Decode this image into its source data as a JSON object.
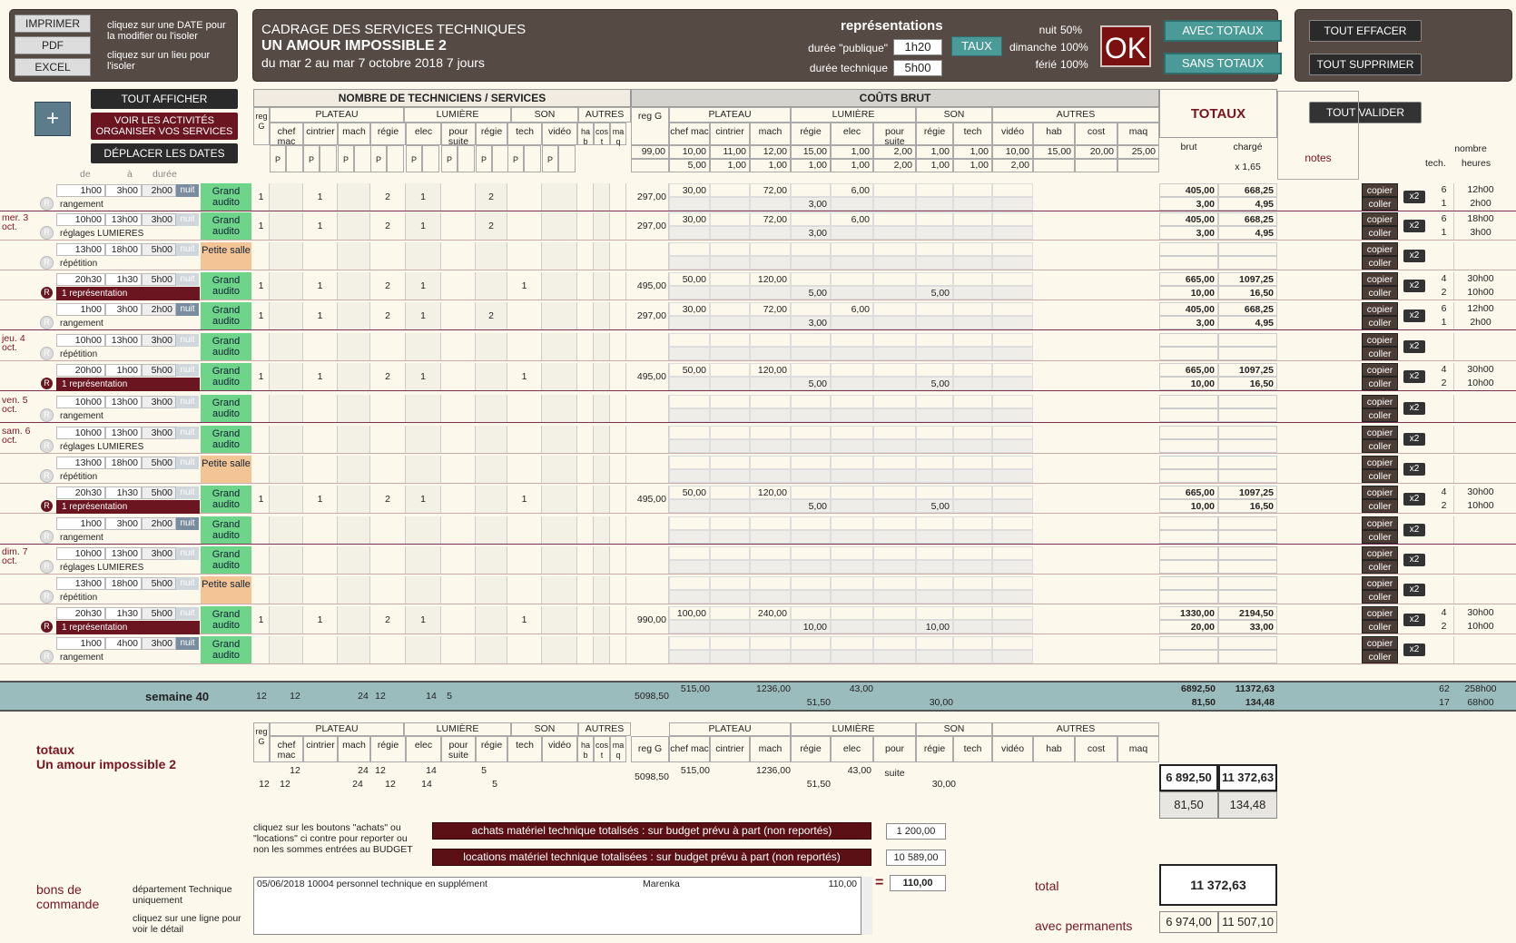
{
  "topleft": {
    "print": "IMPRIMER",
    "pdf": "PDF",
    "excel": "EXCEL",
    "hint1": "cliquez sur une DATE pour la modifier ou l'isoler",
    "hint2": "cliquez sur un lieu pour l'isoler"
  },
  "title": {
    "line1": "CADRAGE DES SERVICES TECHNIQUES",
    "line2": "UN AMOUR IMPOSSIBLE 2",
    "line3": "du mar 2 au mar 7 octobre 2018 7 jours"
  },
  "repr": {
    "title": "représentations",
    "duree_pub_label": "durée \"publique\"",
    "duree_pub": "1h20",
    "duree_tech_label": "durée technique",
    "duree_tech": "5h00",
    "taux": "TAUX",
    "nuit_label": "nuit",
    "nuit": "50%",
    "dim_label": "dimanche",
    "dim": "100%",
    "ferie_label": "férié",
    "ferie": "100%",
    "ok": "OK",
    "avec": "AVEC TOTAUX",
    "sans": "SANS TOTAUX"
  },
  "right": {
    "effacer": "TOUT EFFACER",
    "supprimer": "TOUT SUPPRIMER",
    "valider": "TOUT VALIDER"
  },
  "left2": {
    "plus": "+",
    "afficher": "TOUT AFFICHER",
    "voir": "VOIR LES ACTIVITÉS ORGANISER VOS SERVICES",
    "deplacer": "DÉPLACER LES DATES",
    "de": "de",
    "a": "à",
    "duree": "durée"
  },
  "head": {
    "nb": "NOMBRE DE TECHNICIENS / SERVICES",
    "couts": "COÛTS BRUT",
    "totaux": "TOTAUX",
    "brut": "brut",
    "charge": "chargé",
    "coef": "x 1,65",
    "notes": "notes",
    "nombre": "nombre",
    "tech": "tech.",
    "heures": "heures",
    "groups": [
      "PLATEAU",
      "LUMIÈRE",
      "SON",
      "AUTRES"
    ],
    "cols": [
      "reg G",
      "chef mac",
      "cintrier",
      "mach",
      "régie",
      "elec",
      "pour suite",
      "régie",
      "tech",
      "vidéo",
      "ha b",
      "cos t",
      "ma q"
    ],
    "ccols": [
      "reg G",
      "chef mac",
      "cintrier",
      "mach",
      "régie",
      "elec",
      "pour suite",
      "régie",
      "tech",
      "vidéo",
      "hab",
      "cost",
      "maq"
    ],
    "rates1": [
      "99,00",
      "10,00",
      "11,00",
      "12,00",
      "15,00",
      "1,00",
      "2,00",
      "1,00",
      "1,00",
      "10,00",
      "15,00",
      "20,00",
      "25,00"
    ],
    "rates2": [
      "",
      "5,00",
      "1,00",
      "1,00",
      "1,00",
      "1,00",
      "2,00",
      "1,00",
      "1,00",
      "2,00",
      "",
      "",
      ""
    ],
    "p": "P"
  },
  "rows": [
    {
      "day": "",
      "time1": "1h00",
      "time2": "3h00",
      "dur": "2h00",
      "nuit": "nuit",
      "nuitOn": true,
      "label": "rangement",
      "rep": false,
      "lieu": "Grand audito",
      "lieuType": "g",
      "n": [
        "1",
        "",
        "1",
        "",
        "2",
        "1",
        "",
        "2",
        "",
        "",
        "",
        "",
        ""
      ],
      "regg": "297,00",
      "c1": [
        "30,00",
        "",
        "72,00",
        "",
        "6,00",
        "",
        "",
        "",
        ""
      ],
      "c2": [
        "",
        "",
        "",
        "3,00",
        "",
        "",
        "",
        "",
        ""
      ],
      "brut": [
        "405,00",
        "3,00"
      ],
      "charge": [
        "668,25",
        "4,95"
      ],
      "nb": [
        "6",
        "1"
      ],
      "h": [
        "12h00",
        "2h00"
      ]
    },
    {
      "day": "mer. 3 oct.",
      "time1": "10h00",
      "time2": "13h00",
      "dur": "3h00",
      "nuit": "nuit",
      "nuitOn": false,
      "label": "réglages LUMIERES",
      "rep": false,
      "lieu": "Grand audito",
      "lieuType": "g",
      "n": [
        "1",
        "",
        "1",
        "",
        "2",
        "1",
        "",
        "2",
        "",
        "",
        "",
        "",
        ""
      ],
      "regg": "297,00",
      "c1": [
        "30,00",
        "",
        "72,00",
        "",
        "6,00",
        "",
        "",
        "",
        ""
      ],
      "c2": [
        "",
        "",
        "",
        "3,00",
        "",
        "",
        "",
        "",
        ""
      ],
      "brut": [
        "405,00",
        "3,00"
      ],
      "charge": [
        "668,25",
        "4,95"
      ],
      "nb": [
        "6",
        "1"
      ],
      "h": [
        "18h00",
        "3h00"
      ]
    },
    {
      "day": "",
      "time1": "13h00",
      "time2": "18h00",
      "dur": "5h00",
      "nuit": "nuit",
      "nuitOn": false,
      "label": "répétition",
      "rep": false,
      "lieu": "Petite salle",
      "lieuType": "p",
      "n": [
        "",
        "",
        "",
        "",
        "",
        "",
        "",
        "",
        "",
        "",
        "",
        "",
        ""
      ],
      "regg": "",
      "c1": [
        "",
        "",
        "",
        "",
        "",
        "",
        "",
        "",
        ""
      ],
      "c2": [
        "",
        "",
        "",
        "",
        "",
        "",
        "",
        "",
        ""
      ],
      "brut": [
        "",
        ""
      ],
      "charge": [
        "",
        ""
      ],
      "nb": [
        "",
        ""
      ],
      "h": [
        "",
        ""
      ]
    },
    {
      "day": "",
      "time1": "20h30",
      "time2": "1h30",
      "dur": "5h00",
      "nuit": "nuit",
      "nuitOn": false,
      "label": "1 représentation",
      "rep": true,
      "lieu": "Grand audito",
      "lieuType": "g",
      "n": [
        "1",
        "",
        "1",
        "",
        "2",
        "1",
        "",
        "",
        "1",
        "",
        "",
        "",
        ""
      ],
      "regg": "495,00",
      "c1": [
        "50,00",
        "",
        "120,00",
        "",
        "",
        "",
        "",
        "",
        ""
      ],
      "c2": [
        "",
        "",
        "",
        "5,00",
        "",
        "",
        "5,00",
        "",
        ""
      ],
      "brut": [
        "665,00",
        "10,00"
      ],
      "charge": [
        "1097,25",
        "16,50"
      ],
      "nb": [
        "4",
        "2"
      ],
      "h": [
        "30h00",
        "10h00"
      ]
    },
    {
      "day": "",
      "time1": "1h00",
      "time2": "3h00",
      "dur": "2h00",
      "nuit": "nuit",
      "nuitOn": true,
      "label": "rangement",
      "rep": false,
      "lieu": "Grand audito",
      "lieuType": "g",
      "n": [
        "1",
        "",
        "1",
        "",
        "2",
        "1",
        "",
        "2",
        "",
        "",
        "",
        "",
        ""
      ],
      "regg": "297,00",
      "c1": [
        "30,00",
        "",
        "72,00",
        "",
        "6,00",
        "",
        "",
        "",
        ""
      ],
      "c2": [
        "",
        "",
        "",
        "3,00",
        "",
        "",
        "",
        "",
        ""
      ],
      "brut": [
        "405,00",
        "3,00"
      ],
      "charge": [
        "668,25",
        "4,95"
      ],
      "nb": [
        "6",
        "1"
      ],
      "h": [
        "12h00",
        "2h00"
      ]
    },
    {
      "day": "jeu. 4 oct.",
      "time1": "10h00",
      "time2": "13h00",
      "dur": "3h00",
      "nuit": "nuit",
      "nuitOn": false,
      "label": "répétition",
      "rep": false,
      "lieu": "Grand audito",
      "lieuType": "g",
      "n": [
        "",
        "",
        "",
        "",
        "",
        "",
        "",
        "",
        "",
        "",
        "",
        "",
        ""
      ],
      "regg": "",
      "c1": [
        "",
        "",
        "",
        "",
        "",
        "",
        "",
        "",
        ""
      ],
      "c2": [
        "",
        "",
        "",
        "",
        "",
        "",
        "",
        "",
        ""
      ],
      "brut": [
        "",
        ""
      ],
      "charge": [
        "",
        ""
      ],
      "nb": [
        "",
        ""
      ],
      "h": [
        "",
        ""
      ]
    },
    {
      "day": "",
      "time1": "20h00",
      "time2": "1h00",
      "dur": "5h00",
      "nuit": "nuit",
      "nuitOn": false,
      "label": "1 représentation",
      "rep": true,
      "lieu": "Grand audito",
      "lieuType": "g",
      "n": [
        "1",
        "",
        "1",
        "",
        "2",
        "1",
        "",
        "",
        "1",
        "",
        "",
        "",
        ""
      ],
      "regg": "495,00",
      "c1": [
        "50,00",
        "",
        "120,00",
        "",
        "",
        "",
        "",
        "",
        ""
      ],
      "c2": [
        "",
        "",
        "",
        "5,00",
        "",
        "",
        "5,00",
        "",
        ""
      ],
      "brut": [
        "665,00",
        "10,00"
      ],
      "charge": [
        "1097,25",
        "16,50"
      ],
      "nb": [
        "4",
        "2"
      ],
      "h": [
        "30h00",
        "10h00"
      ]
    },
    {
      "day": "ven. 5 oct.",
      "time1": "10h00",
      "time2": "13h00",
      "dur": "3h00",
      "nuit": "nuit",
      "nuitOn": false,
      "label": "rangement",
      "rep": false,
      "lieu": "Grand audito",
      "lieuType": "g",
      "n": [
        "",
        "",
        "",
        "",
        "",
        "",
        "",
        "",
        "",
        "",
        "",
        "",
        ""
      ],
      "regg": "",
      "c1": [
        "",
        "",
        "",
        "",
        "",
        "",
        "",
        "",
        ""
      ],
      "c2": [
        "",
        "",
        "",
        "",
        "",
        "",
        "",
        "",
        ""
      ],
      "brut": [
        "",
        ""
      ],
      "charge": [
        "",
        ""
      ],
      "nb": [
        "",
        ""
      ],
      "h": [
        "",
        ""
      ]
    },
    {
      "day": "sam. 6 oct.",
      "time1": "10h00",
      "time2": "13h00",
      "dur": "3h00",
      "nuit": "nuit",
      "nuitOn": false,
      "label": "réglages LUMIERES",
      "rep": false,
      "lieu": "Grand audito",
      "lieuType": "g",
      "n": [
        "",
        "",
        "",
        "",
        "",
        "",
        "",
        "",
        "",
        "",
        "",
        "",
        ""
      ],
      "regg": "",
      "c1": [
        "",
        "",
        "",
        "",
        "",
        "",
        "",
        "",
        ""
      ],
      "c2": [
        "",
        "",
        "",
        "",
        "",
        "",
        "",
        "",
        ""
      ],
      "brut": [
        "",
        ""
      ],
      "charge": [
        "",
        ""
      ],
      "nb": [
        "",
        ""
      ],
      "h": [
        "",
        ""
      ]
    },
    {
      "day": "",
      "time1": "13h00",
      "time2": "18h00",
      "dur": "5h00",
      "nuit": "nuit",
      "nuitOn": false,
      "label": "répétition",
      "rep": false,
      "lieu": "Petite salle",
      "lieuType": "p",
      "n": [
        "",
        "",
        "",
        "",
        "",
        "",
        "",
        "",
        "",
        "",
        "",
        "",
        ""
      ],
      "regg": "",
      "c1": [
        "",
        "",
        "",
        "",
        "",
        "",
        "",
        "",
        ""
      ],
      "c2": [
        "",
        "",
        "",
        "",
        "",
        "",
        "",
        "",
        ""
      ],
      "brut": [
        "",
        ""
      ],
      "charge": [
        "",
        ""
      ],
      "nb": [
        "",
        ""
      ],
      "h": [
        "",
        ""
      ]
    },
    {
      "day": "",
      "time1": "20h30",
      "time2": "1h30",
      "dur": "5h00",
      "nuit": "nuit",
      "nuitOn": false,
      "label": "1 représentation",
      "rep": true,
      "lieu": "Grand audito",
      "lieuType": "g",
      "n": [
        "1",
        "",
        "1",
        "",
        "2",
        "1",
        "",
        "",
        "1",
        "",
        "",
        "",
        ""
      ],
      "regg": "495,00",
      "c1": [
        "50,00",
        "",
        "120,00",
        "",
        "",
        "",
        "",
        "",
        ""
      ],
      "c2": [
        "",
        "",
        "",
        "5,00",
        "",
        "",
        "5,00",
        "",
        ""
      ],
      "brut": [
        "665,00",
        "10,00"
      ],
      "charge": [
        "1097,25",
        "16,50"
      ],
      "nb": [
        "4",
        "2"
      ],
      "h": [
        "30h00",
        "10h00"
      ]
    },
    {
      "day": "",
      "time1": "1h00",
      "time2": "3h00",
      "dur": "2h00",
      "nuit": "nuit",
      "nuitOn": true,
      "label": "rangement",
      "rep": false,
      "lieu": "Grand audito",
      "lieuType": "g",
      "n": [
        "",
        "",
        "",
        "",
        "",
        "",
        "",
        "",
        "",
        "",
        "",
        "",
        ""
      ],
      "regg": "",
      "c1": [
        "",
        "",
        "",
        "",
        "",
        "",
        "",
        "",
        ""
      ],
      "c2": [
        "",
        "",
        "",
        "",
        "",
        "",
        "",
        "",
        ""
      ],
      "brut": [
        "",
        ""
      ],
      "charge": [
        "",
        ""
      ],
      "nb": [
        "",
        ""
      ],
      "h": [
        "",
        ""
      ]
    },
    {
      "day": "dim. 7 oct.",
      "time1": "10h00",
      "time2": "13h00",
      "dur": "3h00",
      "nuit": "nuit",
      "nuitOn": false,
      "label": "réglages LUMIERES",
      "rep": false,
      "lieu": "Grand audito",
      "lieuType": "g",
      "n": [
        "",
        "",
        "",
        "",
        "",
        "",
        "",
        "",
        "",
        "",
        "",
        "",
        ""
      ],
      "regg": "",
      "c1": [
        "",
        "",
        "",
        "",
        "",
        "",
        "",
        "",
        ""
      ],
      "c2": [
        "",
        "",
        "",
        "",
        "",
        "",
        "",
        "",
        ""
      ],
      "brut": [
        "",
        ""
      ],
      "charge": [
        "",
        ""
      ],
      "nb": [
        "",
        ""
      ],
      "h": [
        "",
        ""
      ]
    },
    {
      "day": "",
      "time1": "13h00",
      "time2": "18h00",
      "dur": "5h00",
      "nuit": "nuit",
      "nuitOn": false,
      "label": "répétition",
      "rep": false,
      "lieu": "Petite salle",
      "lieuType": "p",
      "n": [
        "",
        "",
        "",
        "",
        "",
        "",
        "",
        "",
        "",
        "",
        "",
        "",
        ""
      ],
      "regg": "",
      "c1": [
        "",
        "",
        "",
        "",
        "",
        "",
        "",
        "",
        ""
      ],
      "c2": [
        "",
        "",
        "",
        "",
        "",
        "",
        "",
        "",
        ""
      ],
      "brut": [
        "",
        ""
      ],
      "charge": [
        "",
        ""
      ],
      "nb": [
        "",
        ""
      ],
      "h": [
        "",
        ""
      ]
    },
    {
      "day": "",
      "time1": "20h30",
      "time2": "1h30",
      "dur": "5h00",
      "nuit": "nuit",
      "nuitOn": false,
      "label": "1 représentation",
      "rep": true,
      "lieu": "Grand audito",
      "lieuType": "g",
      "n": [
        "1",
        "",
        "1",
        "",
        "2",
        "1",
        "",
        "",
        "1",
        "",
        "",
        "",
        ""
      ],
      "regg": "990,00",
      "c1": [
        "100,00",
        "",
        "240,00",
        "",
        "",
        "",
        "",
        "",
        ""
      ],
      "c2": [
        "",
        "",
        "",
        "10,00",
        "",
        "",
        "10,00",
        "",
        ""
      ],
      "brut": [
        "1330,00",
        "20,00"
      ],
      "charge": [
        "2194,50",
        "33,00"
      ],
      "nb": [
        "4",
        "2"
      ],
      "h": [
        "30h00",
        "10h00"
      ]
    },
    {
      "day": "",
      "time1": "1h00",
      "time2": "4h00",
      "dur": "3h00",
      "nuit": "nuit",
      "nuitOn": true,
      "label": "rangement",
      "rep": false,
      "lieu": "Grand audito",
      "lieuType": "g",
      "n": [
        "",
        "",
        "",
        "",
        "",
        "",
        "",
        "",
        "",
        "",
        "",
        "",
        ""
      ],
      "regg": "",
      "c1": [
        "",
        "",
        "",
        "",
        "",
        "",
        "",
        "",
        ""
      ],
      "c2": [
        "",
        "",
        "",
        "",
        "",
        "",
        "",
        "",
        ""
      ],
      "brut": [
        "",
        ""
      ],
      "charge": [
        "",
        ""
      ],
      "nb": [
        "",
        ""
      ],
      "h": [
        "",
        ""
      ]
    }
  ],
  "copier": "copier",
  "coller": "coller",
  "x2": "x2",
  "week": {
    "label": "semaine 40",
    "n": [
      "12",
      "",
      "12",
      "",
      "",
      "24",
      "12",
      "",
      "14",
      "5"
    ],
    "regg": "5098,50",
    "c1a": "515,00",
    "c1b": "1236,00",
    "c1c": "43,00",
    "c2a": "51,50",
    "c2b": "30,00",
    "brut": [
      "6892,50",
      "81,50"
    ],
    "charge": [
      "11372,63",
      "134,48"
    ],
    "nb": [
      "62",
      "17"
    ],
    "h": [
      "258h00",
      "68h00"
    ]
  },
  "totaux": {
    "label": "totaux",
    "sub": "Un amour impossible 2",
    "r1": [
      "12",
      "24",
      "12",
      "14",
      "5"
    ],
    "r2": [
      "12",
      "12",
      "24",
      "12",
      "14",
      "5"
    ],
    "regg": "5098,50",
    "c1": [
      "515,00",
      "1236,00",
      "43,00"
    ],
    "c2": [
      "51,50",
      "30,00"
    ],
    "brut": "6 892,50",
    "charge": "11 372,63",
    "brut2": "81,50",
    "charge2": "134,48"
  },
  "achats": {
    "hint": "cliquez sur les boutons \"achats\" ou \"locations\" ci contre pour reporter ou non les sommes entrées au BUDGET",
    "achats": "achats matériel technique totalisés : sur budget prévu à part (non reportés)",
    "achats_val": "1 200,00",
    "loc": "locations matériel technique totalisées : sur budget prévu à part (non reportés)",
    "loc_val": "10 589,00"
  },
  "bons": {
    "title": "bons de commande",
    "dept": "département Technique uniquement",
    "hint": "cliquez sur une ligne pour voir le détail",
    "line": "05/06/2018   10004   personnel technique en supplément",
    "name": "Marenka",
    "amount": "110,00",
    "total": "110,00",
    "eq": "="
  },
  "total": {
    "label": "total",
    "value": "11 372,63",
    "perm_label": "avec permanents",
    "perm1": "6 974,00",
    "perm2": "11 507,10"
  }
}
